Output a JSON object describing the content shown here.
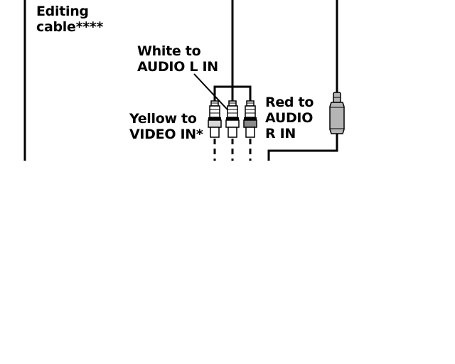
{
  "labels": {
    "editing_cable": [
      "Editing",
      "cable****"
    ],
    "white": [
      "White to",
      "AUDIO L IN"
    ],
    "red": [
      "Red to",
      "AUDIO",
      "R IN"
    ],
    "yellow": [
      "Yellow to",
      "VIDEO IN*"
    ]
  },
  "colors": {
    "line": "#000000",
    "plug_white": "#ffffff",
    "plug_red": "#8a8a8a",
    "plug_yellow": "#d9d9d9",
    "svideo_plug": "#b5b5b5"
  }
}
